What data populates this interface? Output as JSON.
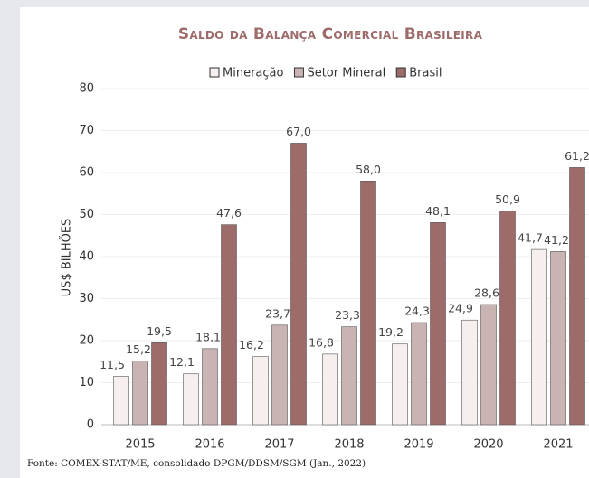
{
  "chart_data": {
    "type": "bar",
    "title": "Saldo da Balança Comercial Brasileira",
    "y_label": "US$ BILHÕES",
    "source": "Fonte: COMEX-STAT/ME, consolidado DPGM/DDSM/SGM (Jan., 2022)",
    "categories": [
      "2015",
      "2016",
      "2017",
      "2018",
      "2019",
      "2020",
      "2021"
    ],
    "series": [
      {
        "name": "Mineração",
        "color": "#f7eeee",
        "values": [
          11.5,
          12.1,
          16.2,
          16.8,
          19.2,
          24.9,
          41.7
        ],
        "value_labels": [
          "11,5",
          "12,1",
          "16,2",
          "16,8",
          "19,2",
          "24,9",
          "41,7"
        ]
      },
      {
        "name": "Setor Mineral",
        "color": "#c9b3b3",
        "values": [
          15.2,
          18.1,
          23.7,
          23.3,
          24.3,
          28.6,
          41.2
        ],
        "value_labels": [
          "15,2",
          "18,1",
          "23,7",
          "23,3",
          "24,3",
          "28,6",
          "41,2"
        ]
      },
      {
        "name": "Brasil",
        "color": "#9e6b6b",
        "values": [
          19.5,
          47.6,
          67.0,
          58.0,
          48.1,
          50.9,
          61.2
        ],
        "value_labels": [
          "19,5",
          "47,6",
          "67,0",
          "58,0",
          "48,1",
          "50,9",
          "61,2"
        ]
      }
    ],
    "ylim": [
      0,
      80
    ],
    "yticks": [
      0,
      10,
      20,
      30,
      40,
      50,
      60,
      70,
      80
    ],
    "grid": true,
    "legend": "top"
  }
}
